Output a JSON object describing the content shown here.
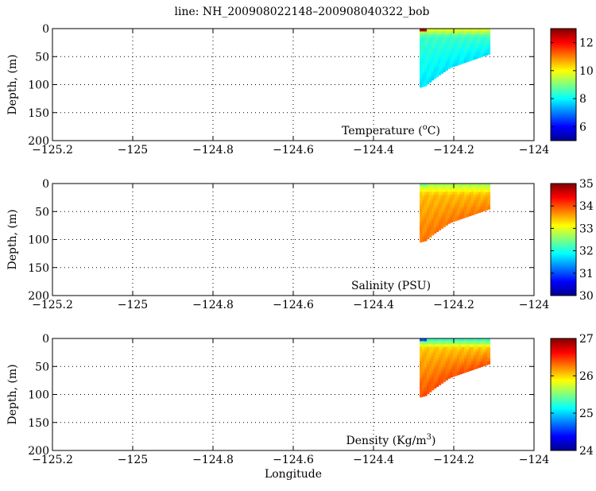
{
  "title": "line: NH_200908022148–200908040322_bob",
  "chart_data": [
    {
      "type": "heatmap",
      "variable_label": "Temperature",
      "variable_unit_html": "(°C)",
      "variable_unit_base": "(",
      "variable_unit_sup": "o",
      "variable_unit_tail": "C)",
      "xlabel": "",
      "ylabel": "Depth, (m)",
      "xlim": [
        -125.2,
        -124.0
      ],
      "ylim": [
        200,
        0
      ],
      "x_ticks": [
        "−125.2",
        "−125",
        "−124.8",
        "−124.6",
        "−124.4",
        "−124.2",
        "−124"
      ],
      "x_tick_values": [
        -125.2,
        -125.0,
        -124.8,
        -124.6,
        -124.4,
        -124.2,
        -124.0
      ],
      "y_ticks": [
        "0",
        "50",
        "100",
        "150",
        "200"
      ],
      "y_tick_values": [
        0,
        50,
        100,
        150,
        200
      ],
      "grid": true,
      "colorbar": {
        "min": 5,
        "max": 13,
        "ticks": [
          "6",
          "8",
          "10",
          "12"
        ],
        "tick_values": [
          6,
          8,
          10,
          12
        ]
      },
      "section": {
        "x_start": -124.285,
        "x_end": -124.11,
        "bottom_depth": [
          [
            -124.285,
            105
          ],
          [
            -124.27,
            102
          ],
          [
            -124.25,
            90
          ],
          [
            -124.23,
            80
          ],
          [
            -124.21,
            70
          ],
          [
            -124.19,
            65
          ],
          [
            -124.15,
            55
          ],
          [
            -124.11,
            45
          ]
        ],
        "surface_value": 10.0,
        "deep_value": 7.8,
        "surface_layer_depth": 15,
        "peak_surface_value": 12.6
      }
    },
    {
      "type": "heatmap",
      "variable_label": "Salinity (PSU)",
      "xlabel": "",
      "ylabel": "Depth, (m)",
      "xlim": [
        -125.2,
        -124.0
      ],
      "ylim": [
        200,
        0
      ],
      "x_ticks": [
        "−125.2",
        "−125",
        "−124.8",
        "−124.6",
        "−124.4",
        "−124.2",
        "−124"
      ],
      "x_tick_values": [
        -125.2,
        -125.0,
        -124.8,
        -124.6,
        -124.4,
        -124.2,
        -124.0
      ],
      "y_ticks": [
        "0",
        "50",
        "100",
        "150",
        "200"
      ],
      "y_tick_values": [
        0,
        50,
        100,
        150,
        200
      ],
      "grid": true,
      "colorbar": {
        "min": 30,
        "max": 35,
        "ticks": [
          "30",
          "31",
          "32",
          "33",
          "34",
          "35"
        ],
        "tick_values": [
          30,
          31,
          32,
          33,
          34,
          35
        ]
      },
      "section": {
        "x_start": -124.285,
        "x_end": -124.11,
        "bottom_depth": [
          [
            -124.285,
            105
          ],
          [
            -124.27,
            102
          ],
          [
            -124.25,
            90
          ],
          [
            -124.23,
            80
          ],
          [
            -124.21,
            70
          ],
          [
            -124.19,
            65
          ],
          [
            -124.15,
            55
          ],
          [
            -124.11,
            45
          ]
        ],
        "surface_value": 32.6,
        "deep_value": 33.8,
        "surface_layer_depth": 20,
        "peak_surface_value": 32.4
      }
    },
    {
      "type": "heatmap",
      "variable_label": "Density",
      "variable_unit_base": "(Kg/m",
      "variable_unit_sup": "3",
      "variable_unit_tail": ")",
      "xlabel": "Longitude",
      "ylabel": "Depth, (m)",
      "xlim": [
        -125.2,
        -124.0
      ],
      "ylim": [
        200,
        0
      ],
      "x_ticks": [
        "−125.2",
        "−125",
        "−124.8",
        "−124.6",
        "−124.4",
        "−124.2",
        "−124"
      ],
      "x_tick_values": [
        -125.2,
        -125.0,
        -124.8,
        -124.6,
        -124.4,
        -124.2,
        -124.0
      ],
      "y_ticks": [
        "0",
        "50",
        "100",
        "150",
        "200"
      ],
      "y_tick_values": [
        0,
        50,
        100,
        150,
        200
      ],
      "grid": true,
      "colorbar": {
        "min": 24,
        "max": 27,
        "ticks": [
          "24",
          "25",
          "26",
          "27"
        ],
        "tick_values": [
          24,
          25,
          26,
          27
        ]
      },
      "section": {
        "x_start": -124.285,
        "x_end": -124.11,
        "bottom_depth": [
          [
            -124.285,
            105
          ],
          [
            -124.27,
            102
          ],
          [
            -124.25,
            90
          ],
          [
            -124.23,
            80
          ],
          [
            -124.21,
            70
          ],
          [
            -124.19,
            65
          ],
          [
            -124.15,
            55
          ],
          [
            -124.11,
            45
          ]
        ],
        "surface_value": 25.2,
        "deep_value": 26.4,
        "surface_layer_depth": 18,
        "peak_surface_value": 24.6
      }
    }
  ]
}
